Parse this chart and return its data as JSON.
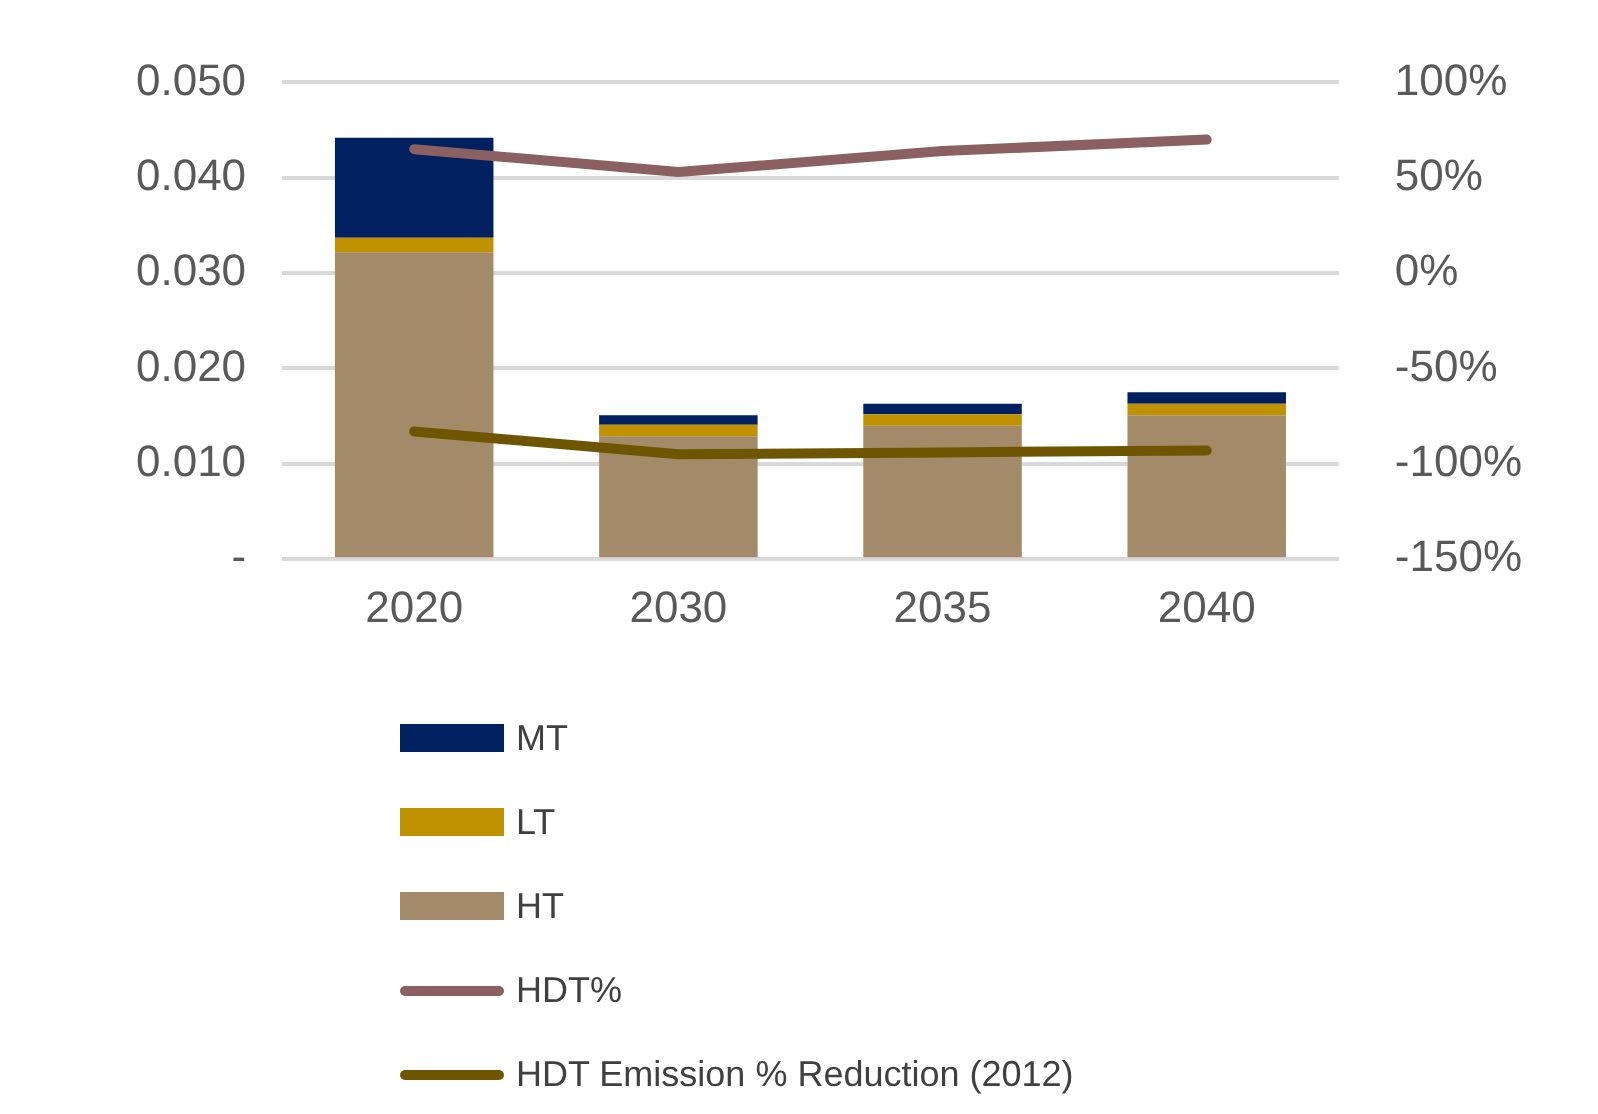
{
  "chart_data": {
    "type": "bar",
    "stacked": true,
    "categories": [
      "2020",
      "2030",
      "2035",
      "2040"
    ],
    "series": [
      {
        "name": "HT",
        "color": "#a38b6a",
        "values": [
          0.0322,
          0.0129,
          0.014,
          0.0151
        ]
      },
      {
        "name": "LT",
        "color": "#c09200",
        "values": [
          0.0015,
          0.0012,
          0.0012,
          0.0012
        ]
      },
      {
        "name": "MT",
        "color": "#002060",
        "values": [
          0.0105,
          0.001,
          0.0011,
          0.0012
        ]
      },
      {
        "name": "HDT%",
        "type": "line",
        "axis": "y2",
        "color": "#8b6060",
        "values": [
          65,
          53,
          64,
          70
        ]
      },
      {
        "name": "HDT Emission % Reduction (2012)",
        "type": "line",
        "axis": "y2",
        "color": "#6e5600",
        "values": [
          -83,
          -95,
          -94,
          -93
        ]
      }
    ],
    "ylim": [
      0,
      0.05
    ],
    "yticks": [
      {
        "value": 0,
        "label": "-"
      },
      {
        "value": 0.01,
        "label": "0.010"
      },
      {
        "value": 0.02,
        "label": "0.020"
      },
      {
        "value": 0.03,
        "label": "0.030"
      },
      {
        "value": 0.04,
        "label": "0.040"
      },
      {
        "value": 0.05,
        "label": "0.050"
      }
    ],
    "y2lim": [
      -150,
      100
    ],
    "y2ticks": [
      {
        "value": -150,
        "label": "-150%"
      },
      {
        "value": -100,
        "label": "-100%"
      },
      {
        "value": -50,
        "label": "-50%"
      },
      {
        "value": 0,
        "label": "0%"
      },
      {
        "value": 50,
        "label": "50%"
      },
      {
        "value": 100,
        "label": "100%"
      }
    ],
    "grid": "y",
    "legend": "bottom",
    "marker": "none"
  }
}
